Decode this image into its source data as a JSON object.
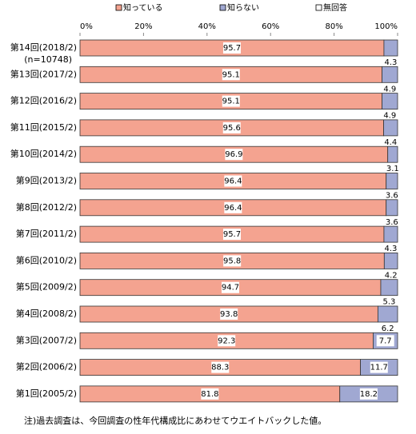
{
  "chart_data": {
    "type": "stacked_barh",
    "categories": [
      "第14回(2018/2)",
      "第13回(2017/2)",
      "第12回(2016/2)",
      "第11回(2015/2)",
      "第10回(2014/2)",
      "第9回(2013/2)",
      "第8回(2012/2)",
      "第7回(2011/2)",
      "第6回(2010/2)",
      "第5回(2009/2)",
      "第4回(2008/2)",
      "第3回(2007/2)",
      "第2回(2006/2)",
      "第1回(2005/2)"
    ],
    "sample_size": "(n=10748)",
    "series": [
      {
        "name": "知っている",
        "color": "#f4a390",
        "values": [
          95.7,
          95.1,
          95.1,
          95.6,
          96.9,
          96.4,
          96.4,
          95.7,
          95.8,
          94.7,
          93.8,
          92.3,
          88.3,
          81.8
        ]
      },
      {
        "name": "知らない",
        "color": "#a0a8d2",
        "values": [
          4.3,
          4.9,
          4.9,
          4.4,
          3.1,
          3.6,
          3.6,
          4.3,
          4.2,
          5.3,
          6.2,
          7.7,
          11.7,
          18.2
        ]
      },
      {
        "name": "無回答",
        "color": "#ffffff",
        "values": [
          0,
          0,
          0,
          0,
          0,
          0,
          0,
          0,
          0,
          0,
          0,
          0,
          0,
          0
        ]
      }
    ],
    "labeled_series": [
      0,
      1
    ],
    "xlim": [
      0,
      100
    ],
    "xticks": [
      {
        "value": 0,
        "label": "0%"
      },
      {
        "value": 20,
        "label": "20%"
      },
      {
        "value": 40,
        "label": "40%"
      },
      {
        "value": 60,
        "label": "60%"
      },
      {
        "value": 80,
        "label": "80%"
      },
      {
        "value": 100,
        "label": "100%"
      }
    ],
    "grid": false,
    "legend": "top",
    "footnote": "注)過去調査は、今回調査の性年代構成比にあわせてウエイトバックした値。"
  }
}
